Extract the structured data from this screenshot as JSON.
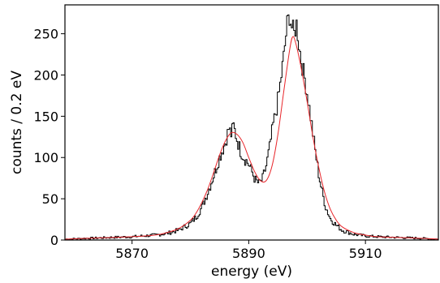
{
  "chart_data": {
    "type": "line",
    "title": "",
    "xlabel": "energy (eV)",
    "ylabel": "counts / 0.2 eV",
    "xlim": [
      5858.5,
      5922.5
    ],
    "ylim": [
      0,
      285
    ],
    "xticks": [
      5870,
      5890,
      5910
    ],
    "yticks": [
      0,
      50,
      100,
      150,
      200,
      250
    ],
    "grid": false,
    "legend": "none",
    "bin_width": 0.2,
    "series": [
      {
        "style": "histogram",
        "color": "#000000",
        "x": [
          5858.5,
          5862,
          5866,
          5870,
          5874,
          5876,
          5878,
          5880,
          5881,
          5882,
          5883,
          5884,
          5885,
          5886,
          5886.6,
          5887,
          5887.4,
          5888,
          5888.6,
          5889.2,
          5890,
          5890.6,
          5891.2,
          5891.8,
          5892.4,
          5893,
          5893.6,
          5894.2,
          5894.8,
          5895.4,
          5896,
          5896.6,
          5897,
          5897.4,
          5897.8,
          5898.2,
          5898.6,
          5899,
          5899.6,
          5900.2,
          5900.8,
          5901.4,
          5902,
          5902.6,
          5903.2,
          5904,
          5905,
          5906,
          5908,
          5910,
          5912,
          5916,
          5920,
          5922.5
        ],
        "y": [
          1,
          2,
          3,
          4,
          6,
          8,
          12,
          20,
          28,
          40,
          58,
          78,
          100,
          118,
          135,
          128,
          138,
          122,
          108,
          100,
          92,
          82,
          72,
          68,
          74,
          90,
          112,
          140,
          160,
          188,
          222,
          262,
          272,
          258,
          250,
          262,
          238,
          218,
          196,
          170,
          140,
          108,
          80,
          58,
          40,
          26,
          18,
          12,
          7,
          5,
          4,
          3,
          2,
          1
        ]
      },
      {
        "style": "fit",
        "color": "#e8262b",
        "x": [
          5858.5,
          5862,
          5866,
          5870,
          5874,
          5876,
          5878,
          5880,
          5881,
          5882,
          5883,
          5884,
          5885,
          5886,
          5887,
          5888,
          5889,
          5890,
          5891,
          5892,
          5893,
          5894,
          5895,
          5896,
          5897,
          5897.5,
          5898,
          5899,
          5900,
          5901,
          5902,
          5903,
          5904,
          5905,
          5906,
          5908,
          5910,
          5912,
          5916,
          5920,
          5922.5
        ],
        "y": [
          1,
          2,
          3,
          4,
          6,
          9,
          14,
          24,
          33,
          46,
          62,
          82,
          103,
          120,
          130,
          128,
          118,
          100,
          83,
          72,
          72,
          90,
          128,
          180,
          230,
          246,
          240,
          208,
          168,
          125,
          88,
          58,
          37,
          24,
          16,
          9,
          6,
          4,
          3,
          2,
          1
        ]
      }
    ]
  }
}
